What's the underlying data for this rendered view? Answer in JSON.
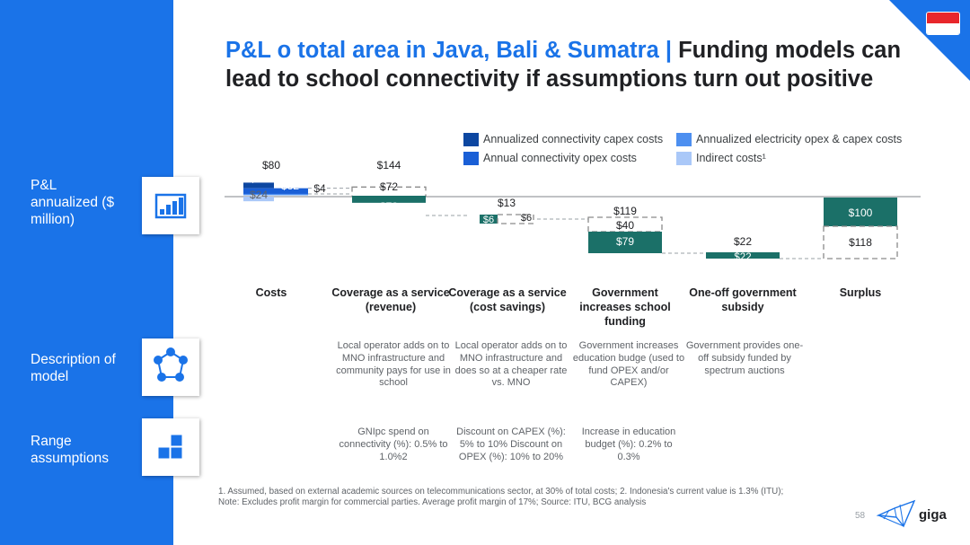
{
  "header": {
    "title_blue": "P&L o total area in Java, Bali & Sumatra | ",
    "title_dark": "Funding models can lead to school connectivity if assumptions turn out positive"
  },
  "sidebar": {
    "rows": [
      {
        "label": "P&L annualized ($ million)",
        "icon": "bar-chart-icon"
      },
      {
        "label": "Description of model",
        "icon": "network-icon"
      },
      {
        "label": "Range assumptions",
        "icon": "blocks-icon"
      }
    ]
  },
  "colors": {
    "sidebar": "#1a73e8",
    "capex": "#0d47a1",
    "conn_opex": "#1a5fd6",
    "elec": "#4d8ff0",
    "indirect": "#aac8f8",
    "teal": "#1b7068",
    "flag_red": "#e8262b"
  },
  "chart_data": {
    "type": "waterfall",
    "legend": [
      {
        "key": "capex",
        "label": "Annualized connectivity capex costs"
      },
      {
        "key": "elec",
        "label": "Annualized electricity opex & capex costs"
      },
      {
        "key": "conn_opex",
        "label": "Annual connectivity opex costs"
      },
      {
        "key": "indirect",
        "label": "Indirect costs¹"
      }
    ],
    "categories": [
      "Costs",
      "Coverage as a service (revenue)",
      "Coverage as a service (cost savings)",
      "Government increases school funding",
      "One-off government subsidy",
      "Surplus"
    ],
    "costs": {
      "total": 80,
      "total_label": "$80",
      "segments": [
        {
          "key": "capex",
          "value": 20,
          "label": "$20"
        },
        {
          "key": "conn_opex",
          "value": 32,
          "label": "$32"
        },
        {
          "key": "elec",
          "value": 4,
          "label": "$4"
        },
        {
          "key": "indirect",
          "value": 24,
          "label": "$24"
        }
      ]
    },
    "steps": [
      {
        "category": "Coverage as a service (revenue)",
        "value": 72,
        "label": "$72",
        "potential": 144,
        "potential_label": "$144",
        "gap_label": "$72"
      },
      {
        "category": "Coverage as a service (cost savings)",
        "value": 6,
        "label": "$6",
        "potential": 13,
        "potential_label": "$13",
        "gap_label": "$6"
      },
      {
        "category": "Government increases school funding",
        "value": 79,
        "label": "$79",
        "potential": 119,
        "potential_label": "$119",
        "gap_label": "$40"
      },
      {
        "category": "One-off government subsidy",
        "value": 22,
        "label": "$22",
        "top_label": "$22"
      }
    ],
    "surplus": {
      "value": 100,
      "label": "$100",
      "potential": 118,
      "potential_label": "$118"
    }
  },
  "descriptions": [
    {
      "text": "Local operator adds on to MNO infrastructure and community pays for use in school"
    },
    {
      "text": "Local operator adds on to MNO infrastructure and does so at a cheaper rate vs. MNO"
    },
    {
      "text": "Government increases education budge (used to fund OPEX and/or CAPEX)"
    },
    {
      "text": "Government provides one-off subsidy funded by spectrum auctions"
    }
  ],
  "assumptions": [
    {
      "text": "GNIpc spend on connectivity (%): 0.5% to 1.0%2"
    },
    {
      "text": "Discount on CAPEX (%): 5% to 10% Discount on OPEX (%): 10% to 20%"
    },
    {
      "text": "Increase in education budget (%): 0.2% to 0.3%"
    }
  ],
  "footnotes": {
    "line1": "1. Assumed, based on external academic sources on telecommunications sector, at 30% of total costs; 2. Indonesia's current value is 1.3% (ITU);",
    "line2": "Note: Excludes profit margin for commercial parties. Average profit margin of 17%; Source: ITU, BCG analysis"
  },
  "page": {
    "number": "58",
    "logo": "giga"
  }
}
